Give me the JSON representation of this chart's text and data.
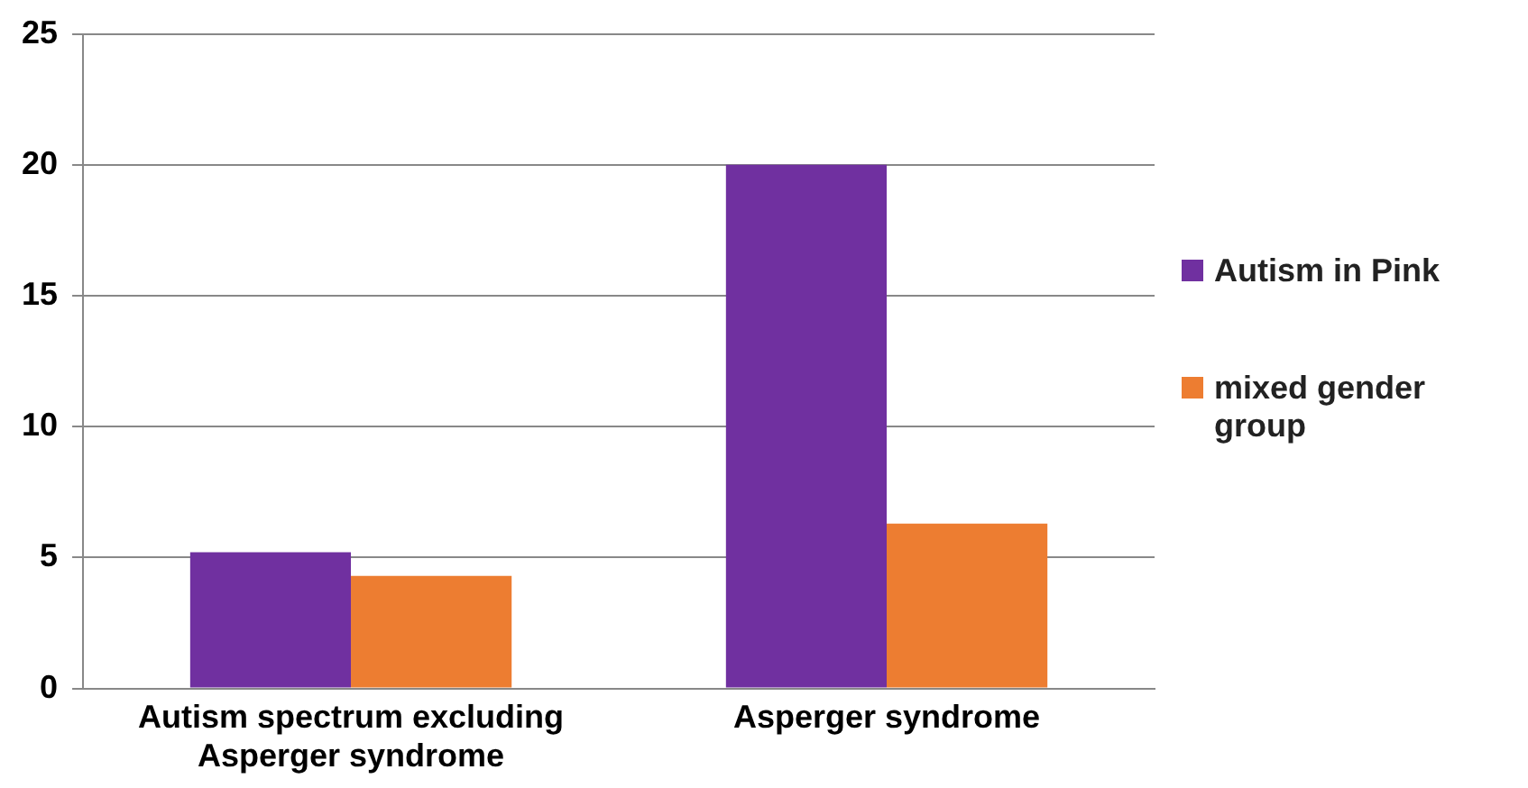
{
  "chart_data": {
    "type": "bar",
    "categories": [
      "Autism spectrum excluding Asperger syndrome",
      "Asperger syndrome"
    ],
    "series": [
      {
        "name": "Autism in Pink",
        "color": "#7030a0",
        "values": [
          5.2,
          20.0
        ]
      },
      {
        "name": "mixed gender group",
        "color": "#ed7d31",
        "values": [
          4.3,
          6.3
        ]
      }
    ],
    "ylim": [
      0,
      25
    ],
    "yticks": [
      0,
      5,
      10,
      15,
      20,
      25
    ],
    "grid": "y",
    "legend": "right"
  }
}
